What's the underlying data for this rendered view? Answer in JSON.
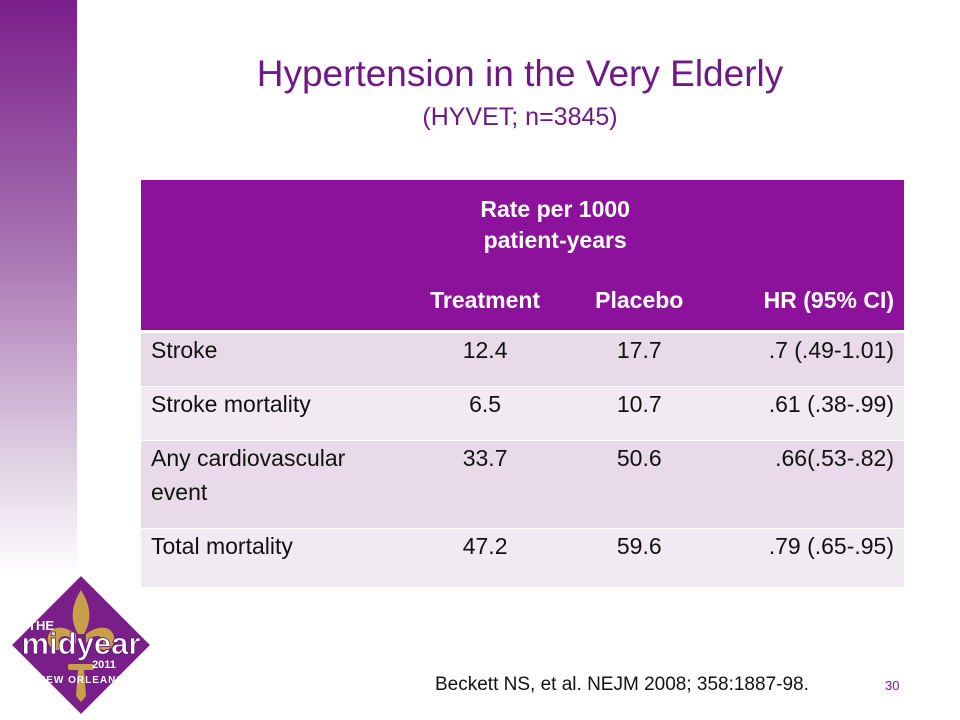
{
  "slide": {
    "title": "Hypertension in the Very Elderly",
    "subtitle": "(HYVET; n=3845)",
    "citation": "Beckett NS, et al. NEJM 2008; 358:1887-98.",
    "page_number": "30"
  },
  "table": {
    "group_header": "Rate per 1000\npatient-years",
    "columns": [
      "",
      "Treatment",
      "Placebo",
      "HR (95% CI)"
    ],
    "rows": [
      {
        "outcome": "Stroke",
        "treatment": "12.4",
        "placebo": "17.7",
        "hr": ".7 (.49-1.01)"
      },
      {
        "outcome": "Stroke mortality",
        "treatment": "6.5",
        "placebo": "10.7",
        "hr": ".61 (.38-.99)"
      },
      {
        "outcome": "Any cardiovascular event",
        "treatment": "33.7",
        "placebo": "50.6",
        "hr": ".66(.53-.82)"
      },
      {
        "outcome": "Total mortality",
        "treatment": "47.2",
        "placebo": "59.6",
        "hr": ".79 (.65-.95)"
      }
    ]
  },
  "logo": {
    "line1": "THE",
    "line2": "midyear",
    "line3": "2011",
    "line4": "NEW ORLEANS",
    "icon": "fleur-de-lis-icon"
  },
  "colors": {
    "accent": "#8c129c",
    "title": "#6e1a84",
    "row_odd": "#e8dae9",
    "row_even": "#f2eaf2"
  }
}
